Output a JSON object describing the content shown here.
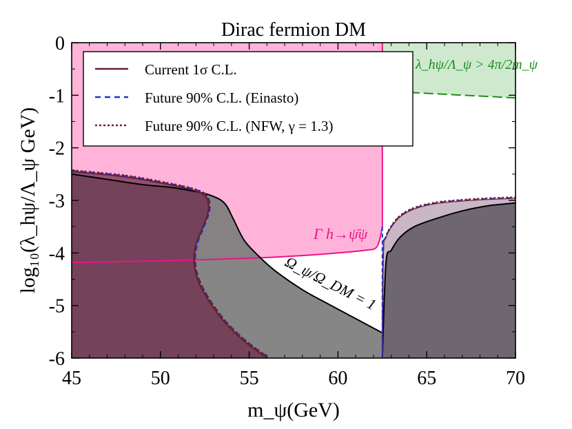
{
  "chart_data": {
    "type": "area",
    "title": "Dirac fermion DM",
    "xlabel": "m_ψ(GeV)",
    "ylabel": "log₁₀(λ_hψ/Λ_ψ GeV)",
    "xlim": [
      45,
      70
    ],
    "ylim": [
      -6,
      0
    ],
    "x_ticks": [
      "45",
      "50",
      "55",
      "60",
      "65",
      "70"
    ],
    "y_ticks": [
      "0",
      "-1",
      "-2",
      "-3",
      "-4",
      "-5",
      "-6"
    ],
    "legend_position": "top-left",
    "legend": [
      {
        "label": "Current 1σ C.L.",
        "style": "solid",
        "color": "#6b1f2a"
      },
      {
        "label": "Future 90% C.L. (Einasto)",
        "style": "dashed",
        "color": "#1f2fd6"
      },
      {
        "label": "Future 90% C.L. (NFW, γ = 1.3)",
        "style": "dotted",
        "color": "#6b1f2a"
      }
    ],
    "annotations": {
      "width_label": "Γ h→ψ̄ψ",
      "relic_label": "Ω_ψ/Ω_DM = 1",
      "perturbativity_label": "λ_hψ/Λ_ψ > 4π/2m_ψ"
    },
    "colors": {
      "higgs_width_region": "#ffb3d9",
      "higgs_width_line": "#ee1188",
      "relic_region": "#7f7f7f",
      "excluded_region": "#6e2a4a",
      "future_region": "#c9b6c6",
      "perturbativity_region": "#cfe9cf",
      "perturbativity_line": "#1a8c1a"
    },
    "series": [
      {
        "name": "Ω_ψ/Ω_DM = 1",
        "x": [
          45,
          47,
          49,
          50.5,
          51.8,
          52.8,
          53.6,
          54.1,
          54.7,
          55.5,
          56.5,
          58,
          59.5,
          61,
          62.5
        ],
        "y": [
          -2.5,
          -2.6,
          -2.7,
          -2.75,
          -2.82,
          -2.9,
          -3.05,
          -3.35,
          -3.75,
          -4.05,
          -4.35,
          -4.7,
          -4.98,
          -5.25,
          -5.52
        ]
      },
      {
        "name": "Ω_ψ/Ω_DM = 1 (right)",
        "x": [
          62.5,
          62.7,
          63.0,
          63.5,
          64.3,
          65.5,
          67,
          68.5,
          70
        ],
        "y": [
          -6,
          -4.2,
          -3.95,
          -3.7,
          -3.5,
          -3.35,
          -3.2,
          -3.1,
          -3.05
        ]
      },
      {
        "name": "Current 1σ C.L.",
        "x": [
          45,
          48,
          50.5,
          52,
          52.6,
          52.7,
          52.4,
          52.0,
          51.9,
          52.15,
          52.8,
          53.7,
          54.8,
          56.0
        ],
        "y": [
          -2.45,
          -2.55,
          -2.7,
          -2.82,
          -2.95,
          -3.2,
          -3.5,
          -3.85,
          -4.2,
          -4.55,
          -4.95,
          -5.35,
          -5.7,
          -6
        ]
      },
      {
        "name": "Future 90% C.L.",
        "x": [
          62.5,
          62.55,
          62.7,
          63.0,
          63.5,
          64.3,
          65.5,
          67,
          68.5,
          70
        ],
        "y": [
          -6,
          -4.0,
          -3.7,
          -3.5,
          -3.3,
          -3.15,
          -3.05,
          -3.0,
          -2.97,
          -2.95
        ]
      },
      {
        "name": "Γ h→ψ̄ψ",
        "x": [
          45,
          50,
          55,
          58,
          60,
          61.5,
          62.2,
          62.5
        ],
        "y": [
          -4.18,
          -4.15,
          -4.1,
          -4.05,
          -4.0,
          -3.95,
          -3.88,
          -3.5
        ]
      }
    ]
  }
}
